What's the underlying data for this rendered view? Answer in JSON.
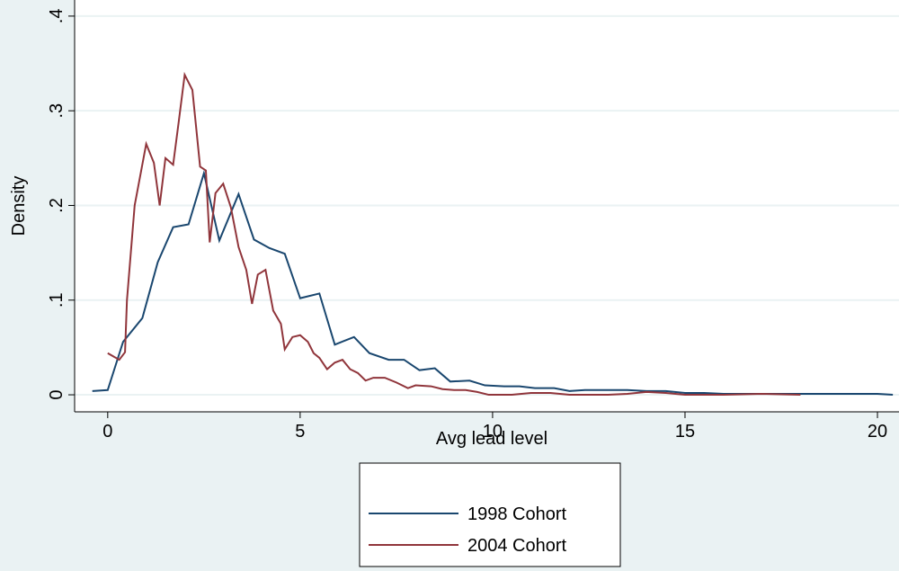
{
  "chart_data": {
    "type": "line",
    "x_label": "Avg lead level",
    "y_label": "Density",
    "xlim": [
      -0.86,
      20.56
    ],
    "ylim": [
      -0.018,
      0.417
    ],
    "xticks": [
      0,
      5,
      10,
      15,
      20
    ],
    "yticks": [
      0,
      {
        "value": 0.1,
        "label": ".1"
      },
      {
        "value": 0.2,
        "label": ".2"
      },
      {
        "value": 0.3,
        "label": ".3"
      },
      {
        "value": 0.4,
        "label": ".4"
      }
    ],
    "grid": true,
    "legend": "bottom",
    "series": [
      {
        "name": "1998 Cohort",
        "color": "#1a476f",
        "x": [
          -0.4,
          0,
          0.4,
          0.9,
          1.3,
          1.7,
          2.1,
          2.5,
          2.9,
          3.4,
          3.8,
          4.2,
          4.6,
          5.0,
          5.5,
          5.9,
          6.4,
          6.8,
          7.3,
          7.7,
          8.1,
          8.5,
          8.9,
          9.4,
          9.8,
          10.3,
          10.7,
          11.1,
          11.6,
          12.0,
          12.4,
          13.0,
          13.5,
          14.0,
          14.5,
          15.0,
          15.5,
          16.0,
          17.0,
          18.0,
          19.0,
          20.0,
          20.4
        ],
        "values": [
          0.004,
          0.005,
          0.056,
          0.081,
          0.14,
          0.177,
          0.18,
          0.234,
          0.163,
          0.212,
          0.164,
          0.155,
          0.149,
          0.102,
          0.107,
          0.053,
          0.061,
          0.044,
          0.037,
          0.037,
          0.026,
          0.028,
          0.014,
          0.015,
          0.01,
          0.009,
          0.009,
          0.007,
          0.007,
          0.004,
          0.005,
          0.005,
          0.005,
          0.004,
          0.004,
          0.002,
          0.002,
          0.001,
          0.001,
          0.001,
          0.001,
          0.001,
          0.0
        ]
      },
      {
        "name": "2004 Cohort",
        "color": "#90353b",
        "x": [
          0,
          0.3,
          0.45,
          0.5,
          0.7,
          1.0,
          1.2,
          1.35,
          1.5,
          1.7,
          1.85,
          2.0,
          2.2,
          2.4,
          2.55,
          2.65,
          2.8,
          3.0,
          3.2,
          3.4,
          3.6,
          3.75,
          3.9,
          4.1,
          4.3,
          4.5,
          4.6,
          4.8,
          5.0,
          5.2,
          5.35,
          5.5,
          5.7,
          5.9,
          6.1,
          6.3,
          6.5,
          6.7,
          6.9,
          7.2,
          7.5,
          7.8,
          8.0,
          8.4,
          8.7,
          9.0,
          9.3,
          9.6,
          9.9,
          10.5,
          11.0,
          11.5,
          12.0,
          13.0,
          13.5,
          14.0,
          14.5,
          15.0,
          16.0,
          17.0,
          18.0
        ],
        "values": [
          0.044,
          0.037,
          0.045,
          0.1,
          0.2,
          0.265,
          0.245,
          0.2,
          0.25,
          0.243,
          0.29,
          0.338,
          0.322,
          0.241,
          0.237,
          0.161,
          0.213,
          0.223,
          0.198,
          0.156,
          0.132,
          0.096,
          0.127,
          0.132,
          0.089,
          0.075,
          0.048,
          0.061,
          0.063,
          0.056,
          0.044,
          0.039,
          0.027,
          0.034,
          0.037,
          0.027,
          0.023,
          0.015,
          0.018,
          0.018,
          0.013,
          0.007,
          0.01,
          0.009,
          0.006,
          0.005,
          0.005,
          0.003,
          0.0,
          0.0,
          0.002,
          0.002,
          0.0,
          0.0,
          0.001,
          0.003,
          0.002,
          0.0,
          0.0,
          0.001,
          0.0
        ]
      }
    ]
  }
}
